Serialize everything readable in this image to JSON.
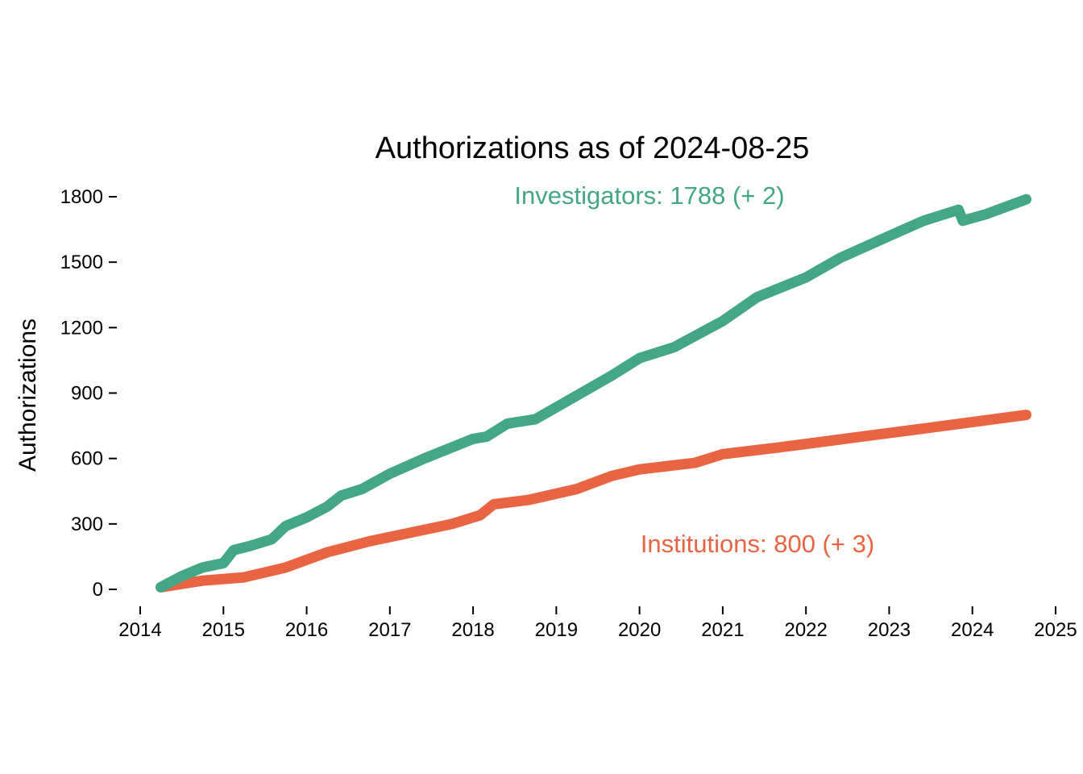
{
  "chart_data": {
    "type": "line",
    "title": "Authorizations as of 2024-08-25",
    "xlabel": "",
    "ylabel": "Authorizations",
    "xlim": [
      "2014",
      "2025"
    ],
    "ylim": [
      0,
      1800
    ],
    "x_ticks": [
      "2014",
      "2015",
      "2016",
      "2017",
      "2018",
      "2019",
      "2020",
      "2021",
      "2022",
      "2023",
      "2024",
      "2025"
    ],
    "y_ticks": [
      0,
      300,
      600,
      900,
      1200,
      1500,
      1800
    ],
    "grid": false,
    "legend": "none",
    "series": [
      {
        "name": "Investigators",
        "label": "Investigators: 1788 (+ 2)",
        "color": "#43A687",
        "points": [
          [
            "2014-04-01",
            10
          ],
          [
            "2014-07-01",
            60
          ],
          [
            "2014-10-01",
            100
          ],
          [
            "2015-01-01",
            120
          ],
          [
            "2015-02-15",
            180
          ],
          [
            "2015-05-01",
            200
          ],
          [
            "2015-08-01",
            230
          ],
          [
            "2015-10-01",
            290
          ],
          [
            "2016-01-01",
            330
          ],
          [
            "2016-04-01",
            380
          ],
          [
            "2016-06-01",
            430
          ],
          [
            "2016-09-01",
            460
          ],
          [
            "2017-01-01",
            530
          ],
          [
            "2017-06-01",
            600
          ],
          [
            "2018-01-01",
            690
          ],
          [
            "2018-03-01",
            700
          ],
          [
            "2018-06-01",
            760
          ],
          [
            "2018-10-01",
            780
          ],
          [
            "2019-03-01",
            870
          ],
          [
            "2019-09-01",
            980
          ],
          [
            "2020-01-01",
            1060
          ],
          [
            "2020-06-01",
            1110
          ],
          [
            "2021-01-01",
            1230
          ],
          [
            "2021-06-01",
            1340
          ],
          [
            "2022-01-01",
            1430
          ],
          [
            "2022-06-01",
            1520
          ],
          [
            "2023-01-01",
            1620
          ],
          [
            "2023-06-01",
            1690
          ],
          [
            "2023-11-01",
            1740
          ],
          [
            "2023-11-20",
            1690
          ],
          [
            "2024-03-01",
            1720
          ],
          [
            "2024-08-25",
            1788
          ]
        ]
      },
      {
        "name": "Institutions",
        "label": "Institutions: 800 (+ 3)",
        "color": "#E86442",
        "points": [
          [
            "2014-04-01",
            10
          ],
          [
            "2014-10-01",
            40
          ],
          [
            "2015-04-01",
            55
          ],
          [
            "2015-10-01",
            100
          ],
          [
            "2016-04-01",
            170
          ],
          [
            "2016-10-01",
            220
          ],
          [
            "2017-04-01",
            260
          ],
          [
            "2017-10-01",
            300
          ],
          [
            "2018-02-01",
            340
          ],
          [
            "2018-04-01",
            390
          ],
          [
            "2018-09-01",
            410
          ],
          [
            "2019-04-01",
            460
          ],
          [
            "2019-09-01",
            520
          ],
          [
            "2020-01-01",
            550
          ],
          [
            "2020-09-01",
            580
          ],
          [
            "2021-01-01",
            620
          ],
          [
            "2021-09-01",
            650
          ],
          [
            "2022-09-01",
            700
          ],
          [
            "2023-09-01",
            750
          ],
          [
            "2024-08-25",
            800
          ]
        ]
      }
    ]
  }
}
